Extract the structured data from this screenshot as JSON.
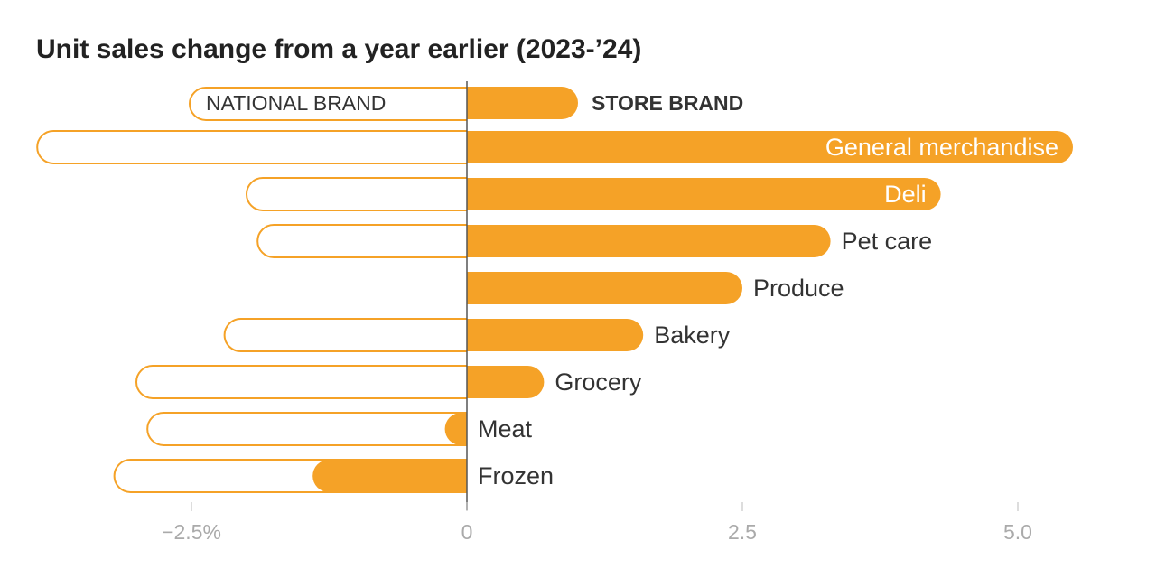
{
  "chart_data": {
    "type": "bar",
    "orientation": "horizontal",
    "title": "Unit sales change from a year earlier (2023-’24)",
    "categories": [
      "General merchandise",
      "Deli",
      "Pet care",
      "Produce",
      "Bakery",
      "Grocery",
      "Meat",
      "Frozen"
    ],
    "series": [
      {
        "name": "NATIONAL BRAND",
        "color": "#f5a227",
        "style": "outline",
        "values": [
          -3.9,
          -2.0,
          -1.9,
          null,
          -2.2,
          -3.0,
          -2.9,
          -3.2
        ]
      },
      {
        "name": "STORE BRAND",
        "color": "#f5a227",
        "style": "filled",
        "values": [
          5.5,
          4.3,
          3.3,
          2.5,
          1.6,
          0.7,
          -0.2,
          -1.4
        ]
      }
    ],
    "xlim": [
      -4,
      5.5
    ],
    "xticks": [
      {
        "value": -2.5,
        "label": "−2.5%"
      },
      0,
      2.5,
      {
        "value": 5,
        "label": "5.0"
      }
    ]
  }
}
